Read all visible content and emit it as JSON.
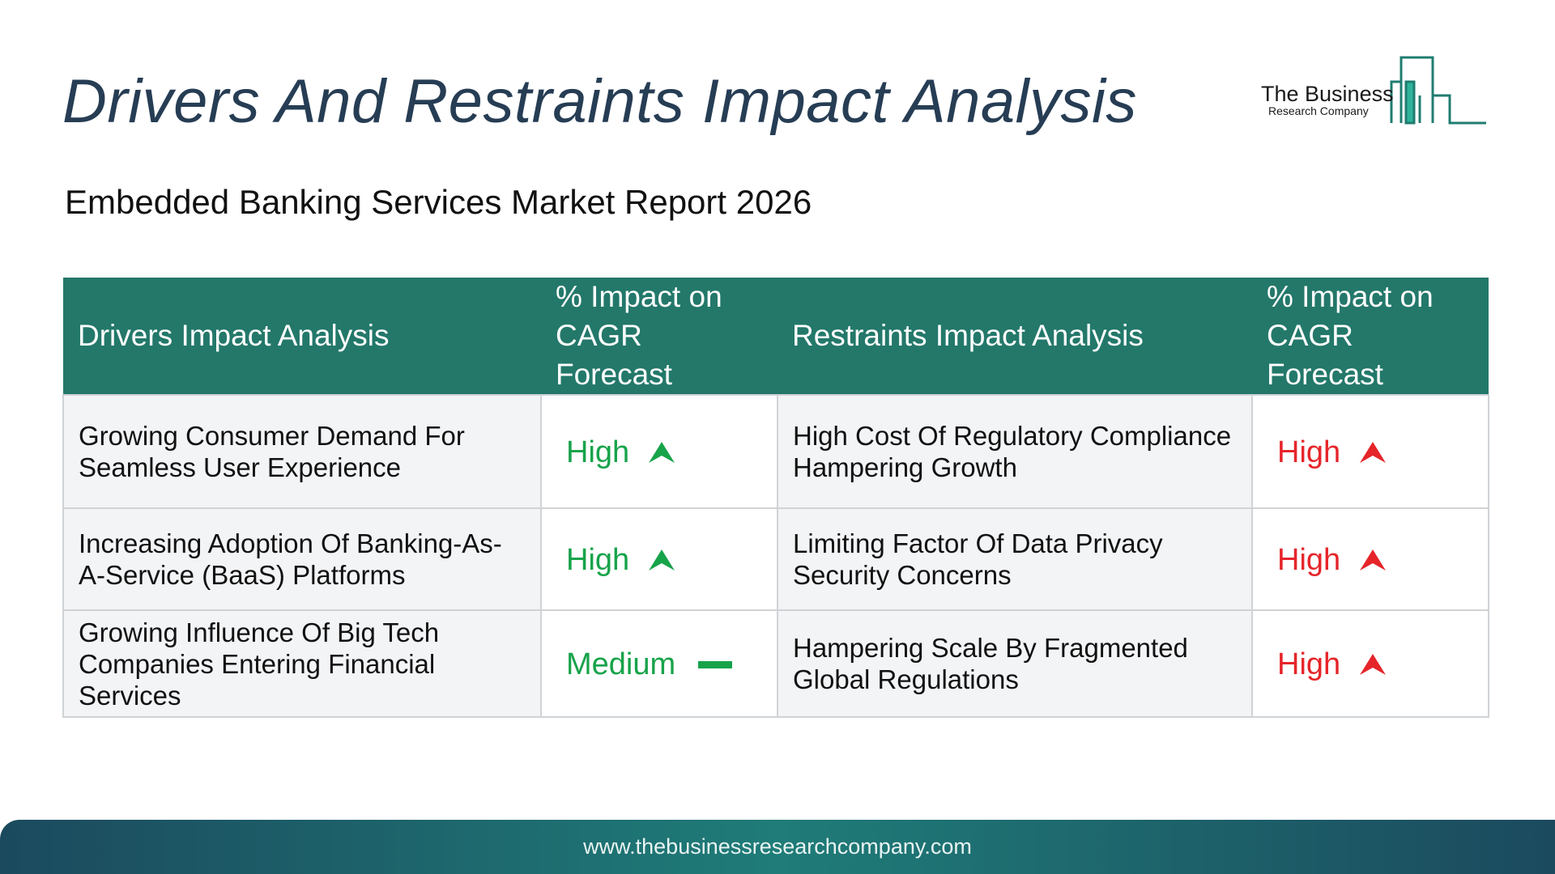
{
  "header": {
    "title": "Drivers And Restraints Impact Analysis",
    "subtitle": "Embedded Banking Services Market Report 2026"
  },
  "logo": {
    "name": "The Business",
    "tagline": "Research Company",
    "icon": "building-bars-icon",
    "color": "#1f7c70"
  },
  "table": {
    "headers": {
      "drivers": "Drivers Impact Analysis",
      "drivers_impact": "% Impact on CAGR Forecast",
      "restraints": "Restraints Impact Analysis",
      "restraints_impact": "% Impact on CAGR Forecast"
    },
    "rows": [
      {
        "driver": "Growing Consumer Demand For Seamless User Experience",
        "driver_impact": "High",
        "driver_icon": "arrow-up-icon",
        "restraint": "High Cost Of Regulatory Compliance Hampering Growth",
        "restraint_impact": "High",
        "restraint_icon": "arrow-up-icon"
      },
      {
        "driver": "Increasing Adoption Of Banking-As-A-Service (BaaS) Platforms",
        "driver_impact": "High",
        "driver_icon": "arrow-up-icon",
        "restraint": "Limiting Factor Of Data Privacy Security Concerns",
        "restraint_impact": "High",
        "restraint_icon": "arrow-up-icon"
      },
      {
        "driver": "Growing Influence Of Big Tech Companies Entering Financial Services",
        "driver_impact": "Medium",
        "driver_icon": "dash-icon",
        "restraint": "Hampering Scale By Fragmented Global Regulations",
        "restraint_impact": "High",
        "restraint_icon": "arrow-up-icon"
      }
    ]
  },
  "colors": {
    "header_bg": "#23786a",
    "driver_impact": "#17a34a",
    "restraint_impact": "#e5252a",
    "title": "#263d54"
  },
  "footer": {
    "url": "www.thebusinessresearchcompany.com"
  }
}
